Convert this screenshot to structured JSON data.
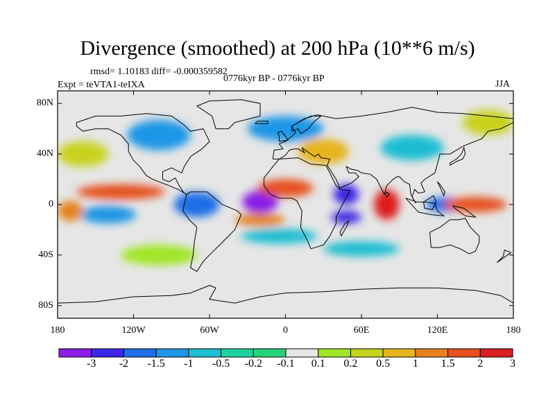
{
  "header": {
    "title": "Divergence (smoothed) at 200 hPa (10**6 m/s)",
    "stats": "rmsd= 1.10183 diff= -0.000359582",
    "period": "0776kyr BP - 0776kyr BP",
    "experiment": "Expt = teVTA1-teIXA",
    "season": "JJA"
  },
  "map": {
    "projection": "cylindrical equidistant",
    "lon_range": [
      -180,
      180
    ],
    "lat_range": [
      -90,
      90
    ],
    "y_ticks": [
      {
        "label": "80N",
        "lat": 80
      },
      {
        "label": "40N",
        "lat": 40
      },
      {
        "label": "0",
        "lat": 0
      },
      {
        "label": "40S",
        "lat": -40
      },
      {
        "label": "80S",
        "lat": -80
      }
    ],
    "x_ticks": [
      {
        "label": "180",
        "lon": -180
      },
      {
        "label": "120W",
        "lon": -120
      },
      {
        "label": "60W",
        "lon": -60
      },
      {
        "label": "0",
        "lon": 0
      },
      {
        "label": "60E",
        "lon": 60
      },
      {
        "label": "120E",
        "lon": 120
      },
      {
        "label": "180",
        "lon": 180
      }
    ]
  },
  "colorbar": {
    "colors": [
      "#8a1ee6",
      "#3c28e6",
      "#1e6ee6",
      "#1e96e6",
      "#1ebed2",
      "#1ed2a0",
      "#28d278",
      "#e6e6e6",
      "#a0e628",
      "#c8d21e",
      "#e6b41e",
      "#e6821e",
      "#e6501e",
      "#dc1e1e"
    ],
    "labels": [
      "-3",
      "-2",
      "-1.5",
      "-1",
      "-0.5",
      "-0.2",
      "-0.1",
      "0.1",
      "0.2",
      "0.5",
      "1",
      "1.5",
      "2",
      "3"
    ]
  },
  "field_blobs": [
    {
      "lon": -20,
      "lat": 2,
      "rx": 14,
      "ry": 9,
      "level": -3
    },
    {
      "lon": 48,
      "lat": -10,
      "rx": 12,
      "ry": 5,
      "level": -2
    },
    {
      "lon": 48,
      "lat": 8,
      "rx": 10,
      "ry": 8,
      "level": -2
    },
    {
      "lon": 125,
      "lat": 0,
      "rx": 14,
      "ry": 6,
      "level": -1.5
    },
    {
      "lon": -70,
      "lat": 0,
      "rx": 18,
      "ry": 10,
      "level": -1.5
    },
    {
      "lon": -140,
      "lat": -8,
      "rx": 22,
      "ry": 7,
      "level": -1
    },
    {
      "lon": 0,
      "lat": 60,
      "rx": 30,
      "ry": 10,
      "level": -1
    },
    {
      "lon": -100,
      "lat": 55,
      "rx": 25,
      "ry": 12,
      "level": -1
    },
    {
      "lon": 100,
      "lat": 45,
      "rx": 25,
      "ry": 10,
      "level": -0.5
    },
    {
      "lon": -5,
      "lat": -25,
      "rx": 30,
      "ry": 6,
      "level": -0.5
    },
    {
      "lon": 60,
      "lat": -35,
      "rx": 30,
      "ry": 6,
      "level": -0.5
    },
    {
      "lon": -160,
      "lat": 40,
      "rx": 20,
      "ry": 10,
      "level": 0.5
    },
    {
      "lon": 160,
      "lat": 65,
      "rx": 20,
      "ry": 10,
      "level": 0.5
    },
    {
      "lon": 30,
      "lat": 42,
      "rx": 20,
      "ry": 10,
      "level": 1
    },
    {
      "lon": 0,
      "lat": 13,
      "rx": 22,
      "ry": 7,
      "level": 2
    },
    {
      "lon": -130,
      "lat": 10,
      "rx": 35,
      "ry": 6,
      "level": 2
    },
    {
      "lon": -170,
      "lat": -5,
      "rx": 10,
      "ry": 8,
      "level": 1.5
    },
    {
      "lon": 80,
      "lat": 0,
      "rx": 10,
      "ry": 12,
      "level": 3
    },
    {
      "lon": 150,
      "lat": 0,
      "rx": 25,
      "ry": 6,
      "level": 2
    },
    {
      "lon": -20,
      "lat": -12,
      "rx": 20,
      "ry": 5,
      "level": 1.5
    },
    {
      "lon": -100,
      "lat": -40,
      "rx": 30,
      "ry": 8,
      "level": 0.2
    }
  ]
}
